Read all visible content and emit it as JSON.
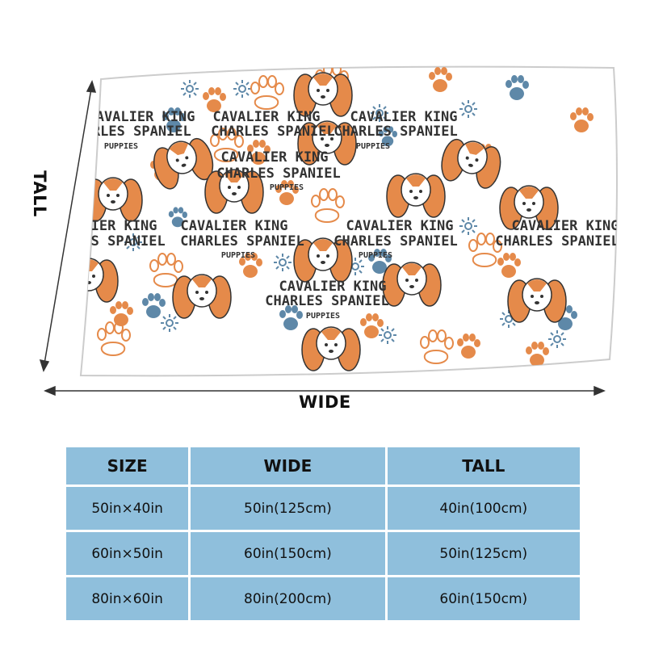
{
  "labels": {
    "tall": "TALL",
    "wide": "WIDE"
  },
  "blanket": {
    "print_line1": "CAVALIER KING",
    "print_line2": "CHARLES SPANIEL",
    "print_line3": "PUPPIES",
    "colors": {
      "orange": "#e58a4a",
      "blue": "#5e88a8",
      "ink": "#333333",
      "background": "#ffffff"
    }
  },
  "table": {
    "headers": [
      "SIZE",
      "WIDE",
      "TALL"
    ],
    "rows": [
      [
        "50in×40in",
        "50in(125cm)",
        "40in(100cm)"
      ],
      [
        "60in×50in",
        "60in(150cm)",
        "50in(125cm)"
      ],
      [
        "80in×60in",
        "80in(200cm)",
        "60in(150cm)"
      ]
    ],
    "cell_color": "#8fbfdc"
  }
}
